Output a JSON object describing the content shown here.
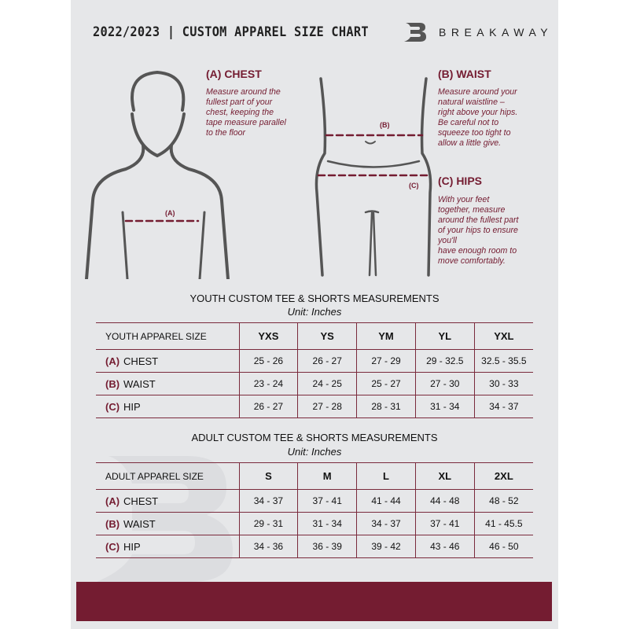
{
  "header": {
    "title": "2022/2023 | CUSTOM APPAREL SIZE CHART",
    "brand": "BREAKAWAY",
    "logo_letter": "B"
  },
  "chest": {
    "heading": "(A) CHEST",
    "lines": [
      "Measure around the",
      "fullest part of your",
      "chest, keeping the",
      "tape measure parallel",
      "to the floor"
    ],
    "marker": "(A)"
  },
  "waist": {
    "heading": "(B) WAIST",
    "lines": [
      "Measure around your",
      "natural waistline –",
      "right above your hips.",
      "Be careful not to",
      "squeeze too tight to",
      "allow a little give."
    ],
    "marker": "(B)"
  },
  "hips": {
    "heading": "(C) HIPS",
    "lines": [
      "With your feet",
      "together, measure",
      "around the fullest part",
      "of your hips to ensure",
      "you'll",
      "have enough room to",
      "move comfortably."
    ],
    "marker": "(C)"
  },
  "colors": {
    "accent": "#741c31",
    "panel": "#e6e7e9"
  },
  "youth": {
    "title": "YOUTH CUSTOM TEE & SHORTS MEASUREMENTS",
    "unit": "Unit: Inches",
    "size_label": "YOUTH APPAREL SIZE",
    "sizes": [
      "YXS",
      "YS",
      "YM",
      "YL",
      "YXL"
    ],
    "rows": [
      {
        "letter": "(A)",
        "label": "CHEST",
        "values": [
          "25 - 26",
          "26 - 27",
          "27 - 29",
          "29 - 32.5",
          "32.5 - 35.5"
        ]
      },
      {
        "letter": "(B)",
        "label": "WAIST",
        "values": [
          "23 - 24",
          "24 - 25",
          "25 - 27",
          "27 - 30",
          "30 - 33"
        ]
      },
      {
        "letter": "(C)",
        "label": "HIP",
        "values": [
          "26 - 27",
          "27 - 28",
          "28 - 31",
          "31 - 34",
          "34 - 37"
        ]
      }
    ]
  },
  "adult": {
    "title": "ADULT CUSTOM TEE & SHORTS MEASUREMENTS",
    "unit": "Unit: Inches",
    "size_label": "ADULT APPAREL SIZE",
    "sizes": [
      "S",
      "M",
      "L",
      "XL",
      "2XL"
    ],
    "rows": [
      {
        "letter": "(A)",
        "label": "CHEST",
        "values": [
          "34 - 37",
          "37 - 41",
          "41 - 44",
          "44 - 48",
          "48 - 52"
        ]
      },
      {
        "letter": "(B)",
        "label": "WAIST",
        "values": [
          "29 - 31",
          "31 - 34",
          "34 - 37",
          "37 - 41",
          "41 - 45.5"
        ]
      },
      {
        "letter": "(C)",
        "label": "HIP",
        "values": [
          "34 - 36",
          "36 - 39",
          "39 - 42",
          "43 - 46",
          "46 - 50"
        ]
      }
    ]
  }
}
